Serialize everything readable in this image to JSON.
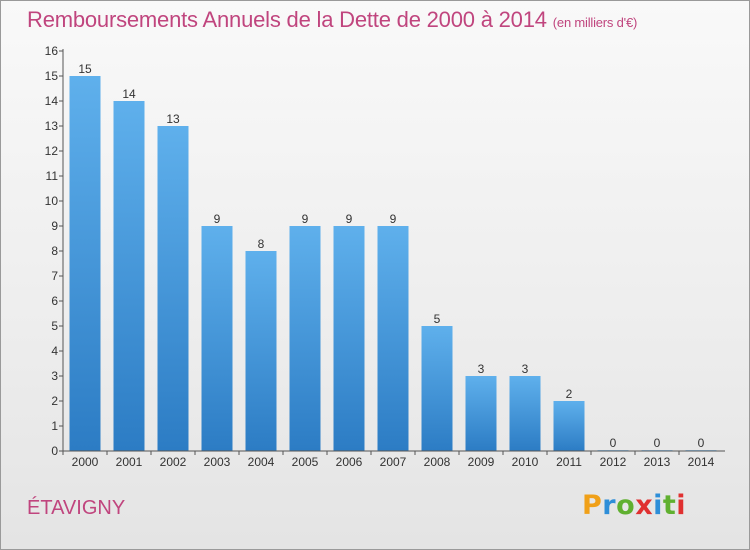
{
  "title": {
    "main": "Remboursements Annuels de la Dette de 2000 à 2014",
    "unit": "(en milliers d'€)"
  },
  "commune": "ÉTAVIGNY",
  "logo": {
    "text": "Proxiti",
    "letter_colors": [
      "#f0a018",
      "#2e8ed8",
      "#60b030",
      "#e03030",
      "#2e8ed8",
      "#60b030",
      "#e03030"
    ]
  },
  "colors": {
    "title": "#c0457e",
    "bar_top": "#5fb0ec",
    "bar_bottom": "#2c7cc4"
  },
  "chart_data": {
    "type": "bar",
    "categories": [
      "2000",
      "2001",
      "2002",
      "2003",
      "2004",
      "2005",
      "2006",
      "2007",
      "2008",
      "2009",
      "2010",
      "2011",
      "2012",
      "2013",
      "2014"
    ],
    "values": [
      15,
      14,
      13,
      9,
      8,
      9,
      9,
      9,
      5,
      3,
      3,
      2,
      0,
      0,
      0
    ],
    "value_labels": [
      "15",
      "14",
      "13",
      "9",
      "8",
      "9",
      "9",
      "9",
      "5",
      "3",
      "3",
      "2",
      "0",
      "0",
      "0"
    ],
    "y_ticks": [
      "0",
      "1",
      "2",
      "3",
      "4",
      "5",
      "6",
      "7",
      "8",
      "9",
      "10",
      "11",
      "12",
      "13",
      "14",
      "15",
      "16"
    ],
    "ylim": [
      0,
      16
    ],
    "grid": false,
    "legend": "none"
  }
}
